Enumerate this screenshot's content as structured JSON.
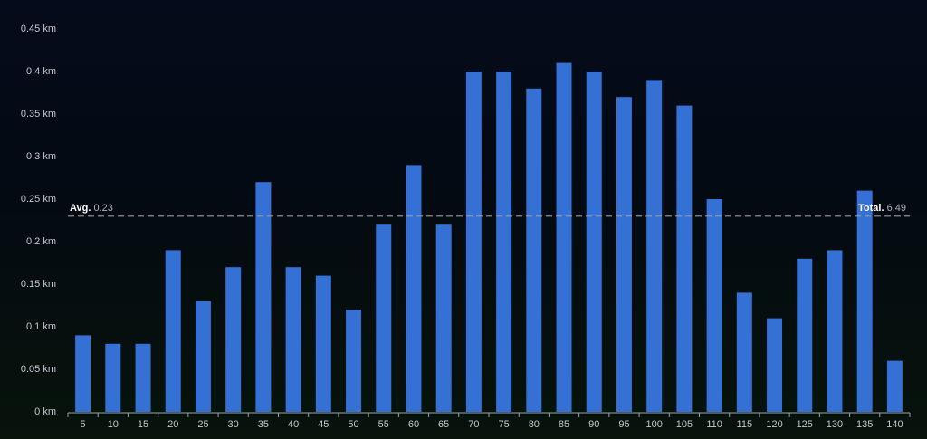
{
  "chart_data": {
    "type": "bar",
    "categories": [
      "5",
      "10",
      "15",
      "20",
      "25",
      "30",
      "35",
      "40",
      "45",
      "50",
      "55",
      "60",
      "65",
      "70",
      "75",
      "80",
      "85",
      "90",
      "95",
      "100",
      "105",
      "110",
      "115",
      "120",
      "125",
      "130",
      "135",
      "140"
    ],
    "values": [
      0.09,
      0.08,
      0.08,
      0.19,
      0.13,
      0.17,
      0.27,
      0.17,
      0.16,
      0.12,
      0.22,
      0.29,
      0.22,
      0.4,
      0.4,
      0.38,
      0.41,
      0.4,
      0.37,
      0.39,
      0.36,
      0.25,
      0.14,
      0.11,
      0.18,
      0.19,
      0.26,
      0.06
    ],
    "color": "#3570d4",
    "ylim": [
      0,
      0.45
    ],
    "yticks": [
      {
        "value": 0,
        "label": "0 km"
      },
      {
        "value": 0.05,
        "label": "0.05 km"
      },
      {
        "value": 0.1,
        "label": "0.1 km"
      },
      {
        "value": 0.15,
        "label": "0.15 km"
      },
      {
        "value": 0.2,
        "label": "0.2 km"
      },
      {
        "value": 0.25,
        "label": "0.25 km"
      },
      {
        "value": 0.3,
        "label": "0.3 km"
      },
      {
        "value": 0.35,
        "label": "0.35 km"
      },
      {
        "value": 0.4,
        "label": "0.4 km"
      },
      {
        "value": 0.45,
        "label": "0.45 km"
      }
    ],
    "average": {
      "label": "Avg.",
      "value": 0.23
    },
    "total": {
      "label": "Total.",
      "value": 6.49
    }
  }
}
